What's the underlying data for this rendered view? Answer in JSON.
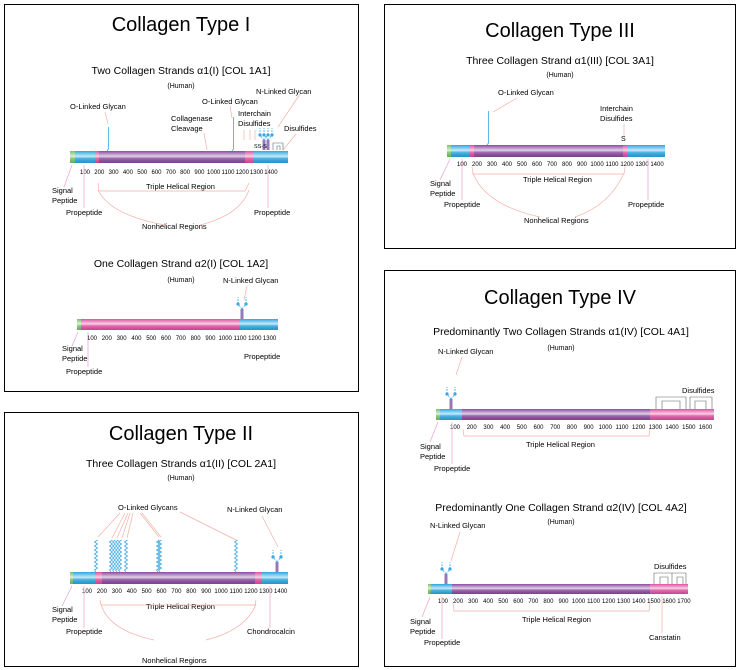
{
  "colors": {
    "signal": "#7cc070",
    "propeptide": "#2aa8e0",
    "helical": "#8a4aa0",
    "nonhelical": "#e050a0",
    "leader": "#f4b0a8",
    "glycan": "#3aa8e0"
  },
  "type1": {
    "title": "Collagen Type I",
    "a1": {
      "subtitle": "Two Collagen Strands α1(I) [COL 1A1]",
      "species": "(Human)",
      "ticks": [
        "100",
        "200",
        "300",
        "400",
        "500",
        "600",
        "700",
        "800",
        "900",
        "1000",
        "1100",
        "1200",
        "1300",
        "1400"
      ],
      "labels": {
        "o_glycan_1": "O-Linked Glycan",
        "o_glycan_2": "O-Linked Glycan",
        "n_glycan": "N-Linked Glycan",
        "collagenase_1": "Collagenase",
        "collagenase_2": "Cleavage",
        "interchain_1": "Interchain",
        "interchain_2": "Disulfides",
        "disulfides": "Disulfides",
        "ss": "SS-S",
        "signal_1": "Signal",
        "signal_2": "Peptide",
        "propeptide_n": "Propeptide",
        "propeptide_c": "Propeptide",
        "triple": "Triple Helical Region",
        "nonhelical": "Nonhelical Regions"
      }
    },
    "a2": {
      "subtitle": "One Collagen Strand α2(I) [COL 1A2]",
      "species": "(Human)",
      "ticks": [
        "100",
        "200",
        "300",
        "400",
        "500",
        "600",
        "700",
        "800",
        "900",
        "1000",
        "1100",
        "1200",
        "1300"
      ],
      "labels": {
        "n_glycan": "N-Linked Glycan",
        "signal_1": "Signal",
        "signal_2": "Peptide",
        "propeptide_n": "Propeptide",
        "propeptide_c": "Propeptide"
      }
    }
  },
  "type2": {
    "title": "Collagen Type II",
    "subtitle": "Three Collagen Strands α1(II) [COL 2A1]",
    "species": "(Human)",
    "ticks": [
      "100",
      "200",
      "300",
      "400",
      "500",
      "600",
      "700",
      "800",
      "900",
      "1000",
      "1100",
      "1200",
      "1300",
      "1400"
    ],
    "labels": {
      "o_glycans": "O-Linked Glycans",
      "n_glycan": "N-Linked Glycan",
      "signal_1": "Signal",
      "signal_2": "Peptide",
      "propeptide": "Propeptide",
      "triple": "Triple Helical Region",
      "chondrocalcin": "Chondrocalcin",
      "nonhelical": "Nonhelical Regions"
    }
  },
  "type3": {
    "title": "Collagen Type III",
    "subtitle": "Three Collagen Strand α1(III) [COL 3A1]",
    "species": "(Human)",
    "ticks": [
      "100",
      "200",
      "300",
      "400",
      "500",
      "600",
      "700",
      "800",
      "900",
      "1000",
      "1100",
      "1200",
      "1300",
      "1400"
    ],
    "labels": {
      "o_glycan": "O-Linked Glycan",
      "interchain_1": "Interchain",
      "interchain_2": "Disulfides",
      "s": "S",
      "signal_1": "Signal",
      "signal_2": "Peptide",
      "propeptide_n": "Propeptide",
      "propeptide_c": "Propeptide",
      "triple": "Triple Helical Region",
      "nonhelical": "Nonhelical Regions"
    }
  },
  "type4": {
    "title": "Collagen Type IV",
    "a1": {
      "subtitle": "Predominantly Two Collagen Strands α1(IV) [COL 4A1]",
      "species": "(Human)",
      "ticks": [
        "100",
        "200",
        "300",
        "400",
        "500",
        "600",
        "700",
        "800",
        "900",
        "1000",
        "1100",
        "1200",
        "1300",
        "1400",
        "1500",
        "1600"
      ],
      "labels": {
        "n_glycan": "N-Linked Glycan",
        "disulfides": "Disulfides",
        "signal_1": "Signal",
        "signal_2": "Peptide",
        "propeptide": "Propeptide",
        "triple": "Triple Helical Region"
      }
    },
    "a2": {
      "subtitle": "Predominantly One Collagen Strand α2(IV) [COL 4A2]",
      "species": "(Human)",
      "ticks": [
        "100",
        "200",
        "300",
        "400",
        "500",
        "600",
        "700",
        "800",
        "900",
        "1000",
        "1100",
        "1200",
        "1300",
        "1400",
        "1500",
        "1600",
        "1700"
      ],
      "labels": {
        "n_glycan": "N-Linked Glycan",
        "disulfides": "Disulfides",
        "signal_1": "Signal",
        "signal_2": "Peptide",
        "propeptide": "Propeptide",
        "triple": "Triple Helical Region",
        "canstatin": "Canstatin"
      }
    }
  }
}
